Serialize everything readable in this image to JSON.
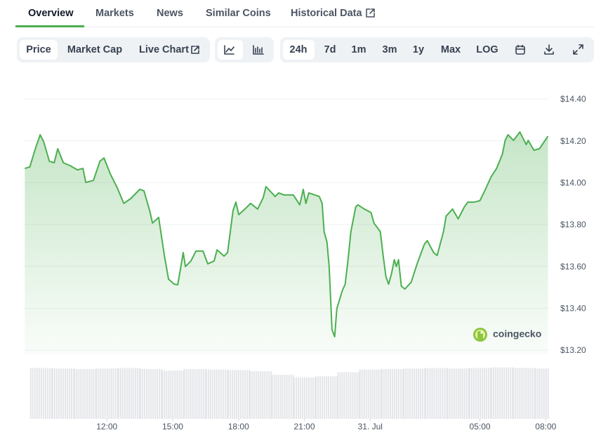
{
  "tabs": [
    "Overview",
    "Markets",
    "News",
    "Similar Coins",
    "Historical Data"
  ],
  "chart_options": [
    "Price",
    "Market Cap",
    "Live Chart"
  ],
  "ranges": [
    "24h",
    "7d",
    "1m",
    "3m",
    "1y",
    "Max",
    "LOG"
  ],
  "watermark": "coingecko",
  "chart_data": {
    "type": "area",
    "x": [
      8.26,
      8.49,
      8.71,
      8.96,
      9.12,
      9.38,
      9.6,
      9.76,
      10.02,
      10.31,
      10.66,
      10.91,
      11.04,
      11.39,
      11.68,
      11.87,
      12.16,
      12.48,
      12.77,
      13.09,
      13.5,
      13.69,
      13.95,
      14.08,
      14.36,
      14.62,
      14.81,
      15.07,
      15.23,
      15.48,
      15.58,
      15.83,
      16.06,
      16.38,
      16.6,
      16.89,
      17.02,
      17.34,
      17.5,
      17.75,
      17.88,
      18.01,
      18.29,
      18.55,
      18.87,
      19.12,
      19.25,
      19.67,
      19.83,
      20.08,
      20.5,
      20.79,
      20.95,
      21.07,
      21.2,
      21.68,
      21.81,
      21.9,
      22.03,
      22.13,
      22.26,
      22.38,
      22.48,
      22.73,
      22.86,
      22.99,
      23.12,
      23.34,
      23.44,
      23.73,
      24.04,
      24.17,
      24.46,
      24.59,
      24.72,
      24.84,
      24.97,
      25.1,
      25.19,
      25.29,
      25.42,
      25.58,
      25.87,
      26.15,
      26.47,
      26.6,
      26.89,
      27.05,
      27.34,
      27.46,
      27.75,
      28.01,
      28.29,
      28.45,
      28.74,
      29.0,
      29.25,
      29.51,
      29.76,
      30.02,
      30.15,
      30.28,
      30.53,
      30.82,
      31.11,
      31.2,
      31.46,
      31.71,
      31.97,
      32.1
    ],
    "series": [
      {
        "color": "#4caf50",
        "values": [
          14.068,
          14.075,
          14.152,
          14.229,
          14.196,
          14.102,
          14.095,
          14.162,
          14.095,
          14.082,
          14.061,
          14.068,
          14.001,
          14.011,
          14.102,
          14.118,
          14.041,
          13.974,
          13.901,
          13.924,
          13.968,
          13.961,
          13.867,
          13.807,
          13.834,
          13.652,
          13.539,
          13.515,
          13.512,
          13.666,
          13.599,
          13.626,
          13.673,
          13.673,
          13.612,
          13.626,
          13.679,
          13.649,
          13.666,
          13.867,
          13.907,
          13.847,
          13.874,
          13.901,
          13.874,
          13.927,
          13.981,
          13.934,
          13.951,
          13.941,
          13.941,
          13.894,
          13.968,
          13.901,
          13.951,
          13.934,
          13.901,
          13.766,
          13.716,
          13.599,
          13.297,
          13.264,
          13.398,
          13.485,
          13.515,
          13.632,
          13.766,
          13.884,
          13.894,
          13.874,
          13.857,
          13.807,
          13.766,
          13.652,
          13.549,
          13.515,
          13.565,
          13.632,
          13.599,
          13.632,
          13.505,
          13.492,
          13.525,
          13.616,
          13.706,
          13.723,
          13.666,
          13.652,
          13.766,
          13.84,
          13.874,
          13.827,
          13.884,
          13.907,
          13.907,
          13.914,
          13.968,
          14.028,
          14.068,
          14.135,
          14.202,
          14.229,
          14.202,
          14.242,
          14.182,
          14.202,
          14.155,
          14.162,
          14.202,
          14.222
        ]
      }
    ],
    "xlim": [
      8.25,
      32.15
    ],
    "xticks": [
      {
        "value": 12,
        "label": "12:00"
      },
      {
        "value": 15,
        "label": "15:00"
      },
      {
        "value": 18,
        "label": "18:00"
      },
      {
        "value": 21,
        "label": "21:00"
      },
      {
        "value": 24,
        "label": "31. Jul"
      },
      {
        "value": 29,
        "label": "05:00"
      },
      {
        "value": 32,
        "label": "08:00"
      }
    ],
    "ylim": [
      13.2,
      14.4
    ],
    "yticks": [
      {
        "value": 13.2,
        "label": "$13.20"
      },
      {
        "value": 13.4,
        "label": "$13.40"
      },
      {
        "value": 13.6,
        "label": "$13.60"
      },
      {
        "value": 13.8,
        "label": "$13.80"
      },
      {
        "value": 14.0,
        "label": "$14.00"
      },
      {
        "value": 14.2,
        "label": "$14.20"
      },
      {
        "value": 14.4,
        "label": "$14.40"
      }
    ],
    "grid": true,
    "volume": {
      "color": "#e3e5e8",
      "ylim": [
        0,
        100
      ],
      "x": [
        9,
        10,
        11,
        12,
        13,
        14,
        15,
        16,
        17,
        18,
        19,
        20,
        21,
        22,
        23,
        24,
        25,
        26,
        27,
        28,
        29,
        30,
        31,
        32
      ],
      "values": [
        98,
        97,
        96,
        97,
        98,
        96,
        93,
        96,
        95,
        94,
        92,
        85,
        80,
        82,
        90,
        95,
        96,
        97,
        98,
        97,
        98,
        99,
        98,
        97
      ]
    }
  }
}
